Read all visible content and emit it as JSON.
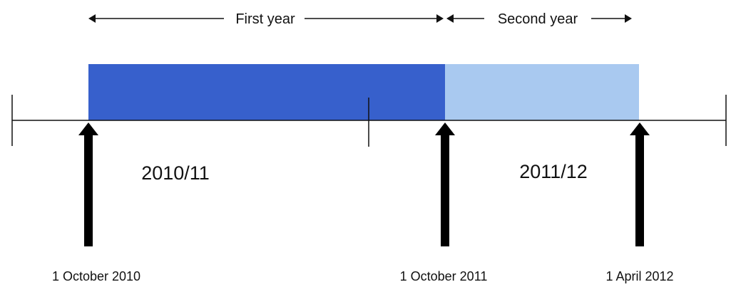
{
  "periods": [
    {
      "label": "First year",
      "color": "#3760cc"
    },
    {
      "label": "Second year",
      "color": "#a9c9f0"
    }
  ],
  "tax_years": [
    "2010/11",
    "2011/12"
  ],
  "dates": [
    "1 October 2010",
    "1 October 2011",
    "1 April 2012"
  ],
  "colors": {
    "line": "#111111",
    "arrow": "#000000"
  }
}
